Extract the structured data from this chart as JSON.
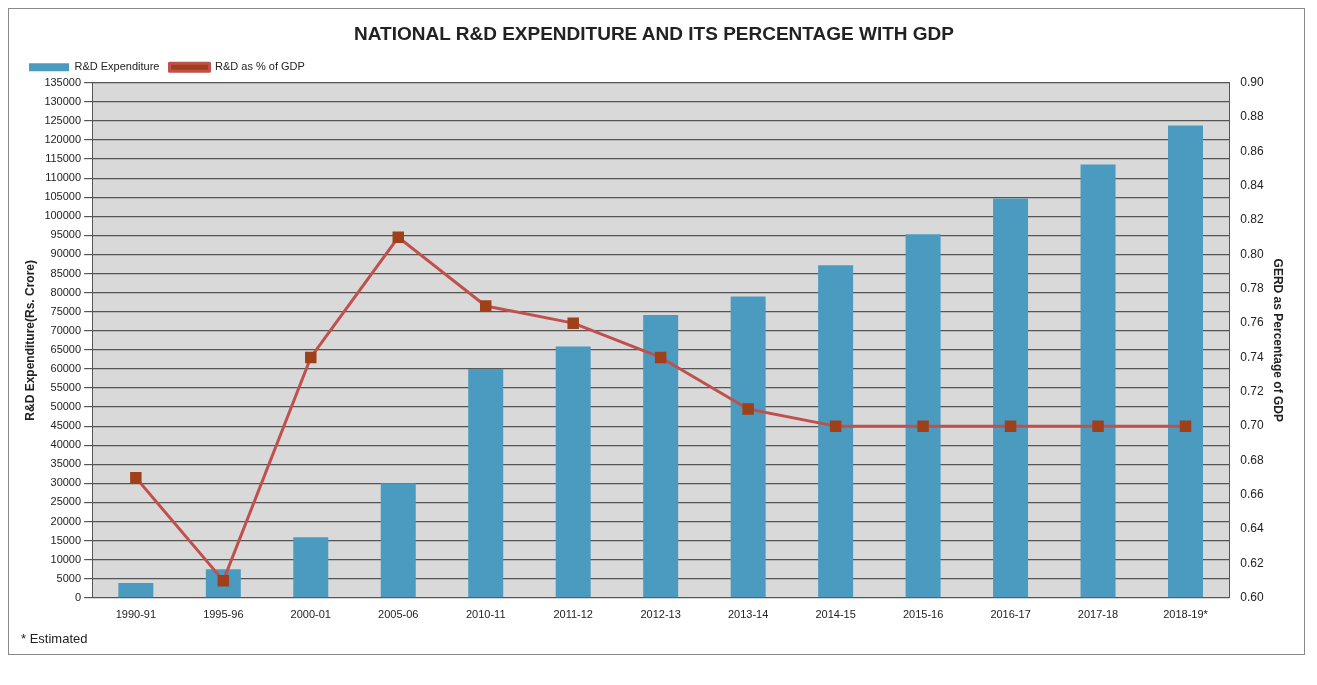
{
  "chart_data": {
    "type": "bar",
    "title": "NATIONAL R&D EXPENDITURE AND ITS PERCENTAGE WITH GDP",
    "ylabel": "R&D Expenditure(Rs. Crore)",
    "y2label": "GERD as Percentage of GDP",
    "categories": [
      "1990-91",
      "1995-96",
      "2000-01",
      "2005-06",
      "2010-11",
      "2011-12",
      "2012-13",
      "2013-14",
      "2014-15",
      "2015-16",
      "2016-17",
      "2017-18",
      "2018-19*"
    ],
    "series": [
      {
        "name": "R&D Expenditure",
        "color": "#4b9bc0",
        "values": [
          3900,
          7500,
          15900,
          30000,
          60000,
          65900,
          74100,
          79000,
          87200,
          95300,
          104700,
          113600,
          123800
        ]
      },
      {
        "name": "R&D as % of GDP",
        "type": "line",
        "axis": "y2",
        "color": "#c0504d",
        "values": [
          0.67,
          0.61,
          0.74,
          0.81,
          0.77,
          0.76,
          0.74,
          0.71,
          0.7,
          0.7,
          0.7,
          0.7,
          0.7
        ]
      }
    ],
    "ylim": [
      0,
      135000
    ],
    "yticks": [
      0,
      5000,
      10000,
      15000,
      20000,
      25000,
      30000,
      35000,
      40000,
      45000,
      50000,
      55000,
      60000,
      65000,
      70000,
      75000,
      80000,
      85000,
      90000,
      95000,
      100000,
      105000,
      110000,
      115000,
      120000,
      125000,
      130000,
      135000
    ],
    "y2lim": [
      0.6,
      0.9
    ],
    "y2ticks": [
      {
        "value": 0.6,
        "label": "0.60"
      },
      {
        "value": 0.62,
        "label": "0.62"
      },
      {
        "value": 0.64,
        "label": "0.64"
      },
      {
        "value": 0.66,
        "label": "0.66"
      },
      {
        "value": 0.68,
        "label": "0.68"
      },
      {
        "value": 0.7,
        "label": "0.70"
      },
      {
        "value": 0.72,
        "label": "0.72"
      },
      {
        "value": 0.74,
        "label": "0.74"
      },
      {
        "value": 0.76,
        "label": "0.76"
      },
      {
        "value": 0.78,
        "label": "0.78"
      },
      {
        "value": 0.8,
        "label": "0.80"
      },
      {
        "value": 0.82,
        "label": "0.82"
      },
      {
        "value": 0.84,
        "label": "0.84"
      },
      {
        "value": 0.86,
        "label": "0.86"
      },
      {
        "value": 0.88,
        "label": "0.88"
      },
      {
        "value": 0.9,
        "label": "0.90"
      }
    ],
    "grid": "y",
    "legend": "top left",
    "marker": "square",
    "line_style": "solid",
    "annotations": [
      "* Estimated"
    ]
  }
}
